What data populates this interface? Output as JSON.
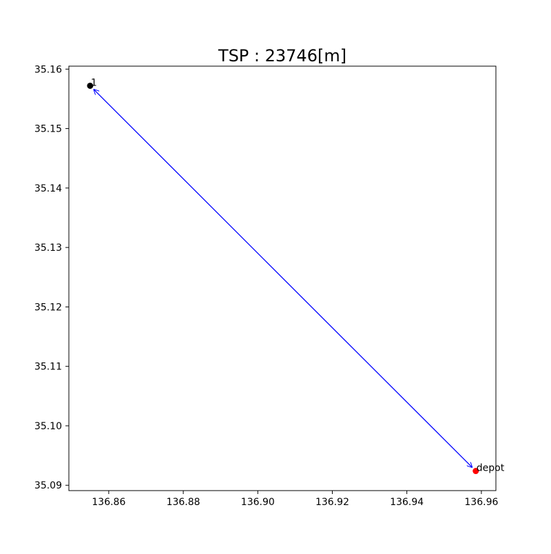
{
  "chart_data": {
    "type": "scatter",
    "title": "TSP : 23746[m]",
    "xlabel": "",
    "ylabel": "",
    "xlim": [
      136.8493,
      136.9639
    ],
    "ylim": [
      35.0891,
      35.1605
    ],
    "x_ticks": [
      136.86,
      136.88,
      136.9,
      136.92,
      136.94,
      136.96
    ],
    "x_tick_labels": [
      "136.86",
      "136.88",
      "136.90",
      "136.92",
      "136.94",
      "136.96"
    ],
    "y_ticks": [
      35.09,
      35.1,
      35.11,
      35.12,
      35.13,
      35.14,
      35.15,
      35.16
    ],
    "y_tick_labels": [
      "35.09",
      "35.10",
      "35.11",
      "35.12",
      "35.13",
      "35.14",
      "35.15",
      "35.16"
    ],
    "grid": false,
    "points": [
      {
        "label": "1",
        "x": 136.855,
        "y": 35.1572,
        "color": "#000000"
      },
      {
        "label": "depot",
        "x": 136.9585,
        "y": 35.0924,
        "color": "#ff0000"
      }
    ],
    "route": {
      "from": [
        136.9585,
        35.0924
      ],
      "to": [
        136.855,
        35.1572
      ],
      "color": "#0000ff",
      "bidirectional_arrows": true
    }
  }
}
